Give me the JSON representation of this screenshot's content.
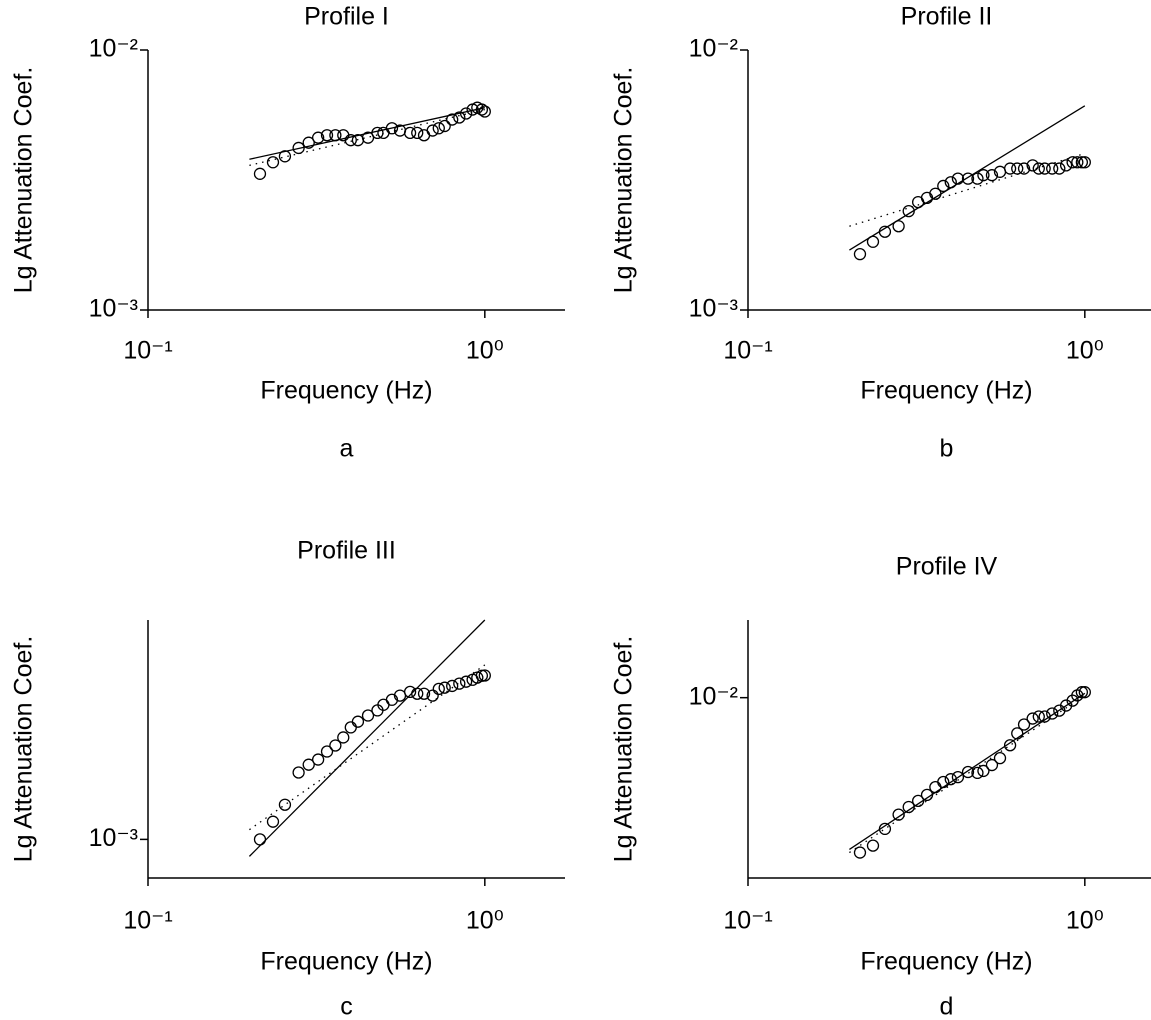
{
  "chart_data": [
    {
      "type": "scatter",
      "title": "Profile I",
      "caption": "a",
      "xlabel": "Frequency (Hz)",
      "ylabel": "Lg Attenuation Coef.",
      "xlog": true,
      "ylog": true,
      "xlim": [
        0.1,
        1.73
      ],
      "ylim": [
        0.001,
        0.01
      ],
      "xticks": [
        {
          "value": 0.1,
          "label": "10⁻¹"
        },
        {
          "value": 1,
          "label": "10⁰"
        }
      ],
      "yticks": [
        {
          "value": 0.001,
          "label": "10⁻³"
        },
        {
          "value": 0.01,
          "label": "10⁻²"
        }
      ],
      "color": "#000000",
      "series": [
        {
          "style": "markers",
          "x": [
            0.215,
            0.235,
            0.255,
            0.28,
            0.3,
            0.32,
            0.34,
            0.36,
            0.38,
            0.4,
            0.42,
            0.45,
            0.48,
            0.5,
            0.53,
            0.56,
            0.6,
            0.63,
            0.66,
            0.7,
            0.73,
            0.76,
            0.8,
            0.84,
            0.88,
            0.92,
            0.95,
            0.98,
            1.0
          ],
          "values": [
            0.00334,
            0.0037,
            0.0039,
            0.0042,
            0.0044,
            0.0046,
            0.0047,
            0.0047,
            0.0047,
            0.0045,
            0.0045,
            0.0046,
            0.0048,
            0.0048,
            0.005,
            0.0049,
            0.0048,
            0.0048,
            0.0047,
            0.0049,
            0.005,
            0.0051,
            0.0054,
            0.0055,
            0.0057,
            0.0059,
            0.006,
            0.0059,
            0.0058
          ]
        },
        {
          "style": "solid",
          "x": [
            0.2,
            1.0
          ],
          "values": [
            0.0038,
            0.006
          ]
        },
        {
          "style": "dotted",
          "x": [
            0.2,
            1.0
          ],
          "values": [
            0.0036,
            0.0059
          ]
        }
      ]
    },
    {
      "type": "scatter",
      "title": "Profile II",
      "caption": "b",
      "xlabel": "Frequency (Hz)",
      "ylabel": "Lg Attenuation Coef.",
      "xlog": true,
      "ylog": true,
      "xlim": [
        0.1,
        1.73
      ],
      "ylim": [
        0.001,
        0.01
      ],
      "xticks": [
        {
          "value": 0.1,
          "label": "10⁻¹"
        },
        {
          "value": 1,
          "label": "10⁰"
        }
      ],
      "yticks": [
        {
          "value": 0.001,
          "label": "10⁻³"
        },
        {
          "value": 0.01,
          "label": "10⁻²"
        }
      ],
      "color": "#000000",
      "series": [
        {
          "style": "markers",
          "x": [
            0.215,
            0.235,
            0.255,
            0.28,
            0.3,
            0.32,
            0.34,
            0.36,
            0.38,
            0.4,
            0.42,
            0.45,
            0.48,
            0.5,
            0.53,
            0.56,
            0.6,
            0.63,
            0.66,
            0.7,
            0.73,
            0.76,
            0.8,
            0.84,
            0.88,
            0.92,
            0.95,
            0.98,
            1.0
          ],
          "values": [
            0.00164,
            0.00183,
            0.002,
            0.0021,
            0.0024,
            0.0026,
            0.0027,
            0.0028,
            0.003,
            0.0031,
            0.0032,
            0.0032,
            0.0032,
            0.0033,
            0.0033,
            0.0034,
            0.0035,
            0.0035,
            0.0035,
            0.0036,
            0.0035,
            0.0035,
            0.0035,
            0.0035,
            0.0036,
            0.0037,
            0.0037,
            0.0037,
            0.0037
          ]
        },
        {
          "style": "solid",
          "x": [
            0.2,
            1.0
          ],
          "values": [
            0.0017,
            0.0061
          ]
        },
        {
          "style": "dotted",
          "x": [
            0.2,
            1.0
          ],
          "values": [
            0.0021,
            0.004
          ]
        }
      ]
    },
    {
      "type": "scatter",
      "title": "Profile III",
      "caption": "c",
      "xlabel": "Frequency (Hz)",
      "ylabel": "Lg Attenuation Coef.",
      "xlog": true,
      "ylog": true,
      "xlim": [
        0.1,
        1.73
      ],
      "ylim": [
        0.00071,
        0.007
      ],
      "xticks": [
        {
          "value": 0.1,
          "label": "10⁻¹"
        },
        {
          "value": 1,
          "label": "10⁰"
        }
      ],
      "yticks": [
        {
          "value": 0.001,
          "label": "10⁻³"
        }
      ],
      "color": "#000000",
      "series": [
        {
          "style": "markers",
          "x": [
            0.215,
            0.235,
            0.255,
            0.28,
            0.3,
            0.32,
            0.34,
            0.36,
            0.38,
            0.4,
            0.42,
            0.45,
            0.48,
            0.5,
            0.53,
            0.56,
            0.6,
            0.63,
            0.66,
            0.7,
            0.73,
            0.76,
            0.8,
            0.84,
            0.88,
            0.92,
            0.95,
            0.98,
            1.0
          ],
          "values": [
            0.001,
            0.00117,
            0.00136,
            0.00181,
            0.00194,
            0.00203,
            0.00218,
            0.0023,
            0.00247,
            0.0027,
            0.00284,
            0.003,
            0.00314,
            0.0033,
            0.00345,
            0.00358,
            0.0037,
            0.00364,
            0.00364,
            0.00358,
            0.0038,
            0.00384,
            0.0039,
            0.00398,
            0.00405,
            0.00412,
            0.0042,
            0.00427,
            0.00428
          ]
        },
        {
          "style": "solid",
          "x": [
            0.2,
            1.0
          ],
          "values": [
            0.00086,
            0.007
          ]
        },
        {
          "style": "dotted",
          "x": [
            0.2,
            1.0
          ],
          "values": [
            0.00109,
            0.0047
          ]
        }
      ]
    },
    {
      "type": "scatter",
      "title": "Profile IV",
      "caption": "d",
      "xlabel": "Frequency (Hz)",
      "ylabel": "Lg Attenuation Coef.",
      "xlog": true,
      "ylog": true,
      "xlim": [
        0.1,
        1.73
      ],
      "ylim": [
        0.002,
        0.02
      ],
      "xticks": [
        {
          "value": 0.1,
          "label": "10⁻¹"
        },
        {
          "value": 1,
          "label": "10⁰"
        }
      ],
      "yticks": [
        {
          "value": 0.01,
          "label": "10⁻²"
        }
      ],
      "color": "#000000",
      "series": [
        {
          "style": "markers",
          "x": [
            0.215,
            0.235,
            0.255,
            0.28,
            0.3,
            0.32,
            0.34,
            0.36,
            0.38,
            0.4,
            0.42,
            0.45,
            0.48,
            0.5,
            0.53,
            0.56,
            0.6,
            0.63,
            0.66,
            0.7,
            0.73,
            0.76,
            0.8,
            0.84,
            0.88,
            0.92,
            0.95,
            0.98,
            1.0
          ],
          "values": [
            0.00251,
            0.00267,
            0.0031,
            0.00352,
            0.00377,
            0.00398,
            0.0042,
            0.0045,
            0.00471,
            0.00483,
            0.00492,
            0.00515,
            0.00511,
            0.0052,
            0.00548,
            0.00583,
            0.00654,
            0.00727,
            0.00787,
            0.0083,
            0.00845,
            0.00845,
            0.00868,
            0.00891,
            0.00932,
            0.00974,
            0.0102,
            0.0105,
            0.0105
          ]
        },
        {
          "style": "solid",
          "x": [
            0.2,
            1.0
          ],
          "values": [
            0.00258,
            0.0104
          ]
        },
        {
          "style": "dotted",
          "x": [
            0.2,
            1.0
          ],
          "values": [
            0.00251,
            0.0102
          ]
        }
      ]
    }
  ]
}
